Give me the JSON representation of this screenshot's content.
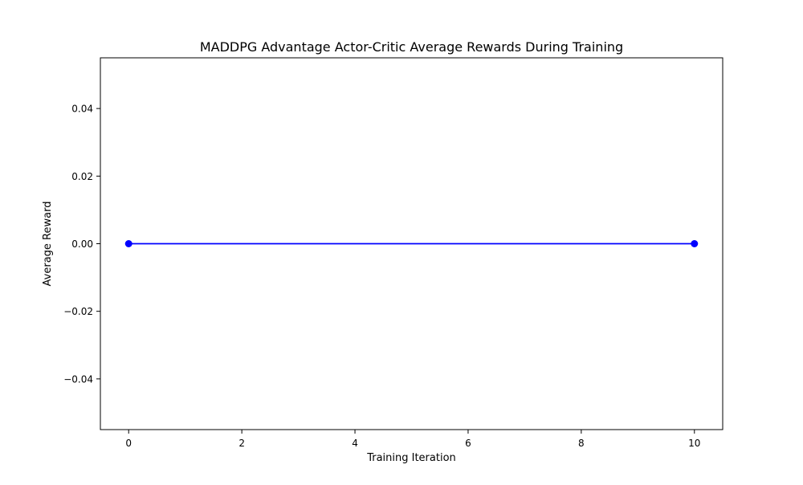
{
  "chart_data": {
    "type": "line",
    "title": "MADDPG Advantage Actor-Critic Average Rewards During Training",
    "xlabel": "Training Iteration",
    "ylabel": "Average Reward",
    "xlim": [
      -0.5,
      10.5
    ],
    "ylim": [
      -0.055,
      0.055
    ],
    "xticks": [
      0,
      2,
      4,
      6,
      8,
      10
    ],
    "xtick_labels": [
      "0",
      "2",
      "4",
      "6",
      "8",
      "10"
    ],
    "yticks": [
      -0.04,
      -0.02,
      0.0,
      0.02,
      0.04
    ],
    "ytick_labels": [
      "−0.04",
      "−0.02",
      "0.00",
      "0.02",
      "0.04"
    ],
    "grid": false,
    "series": [
      {
        "x": [
          0,
          10
        ],
        "y": [
          0,
          0
        ],
        "color": "#0000ff",
        "marker": "circle"
      }
    ]
  }
}
